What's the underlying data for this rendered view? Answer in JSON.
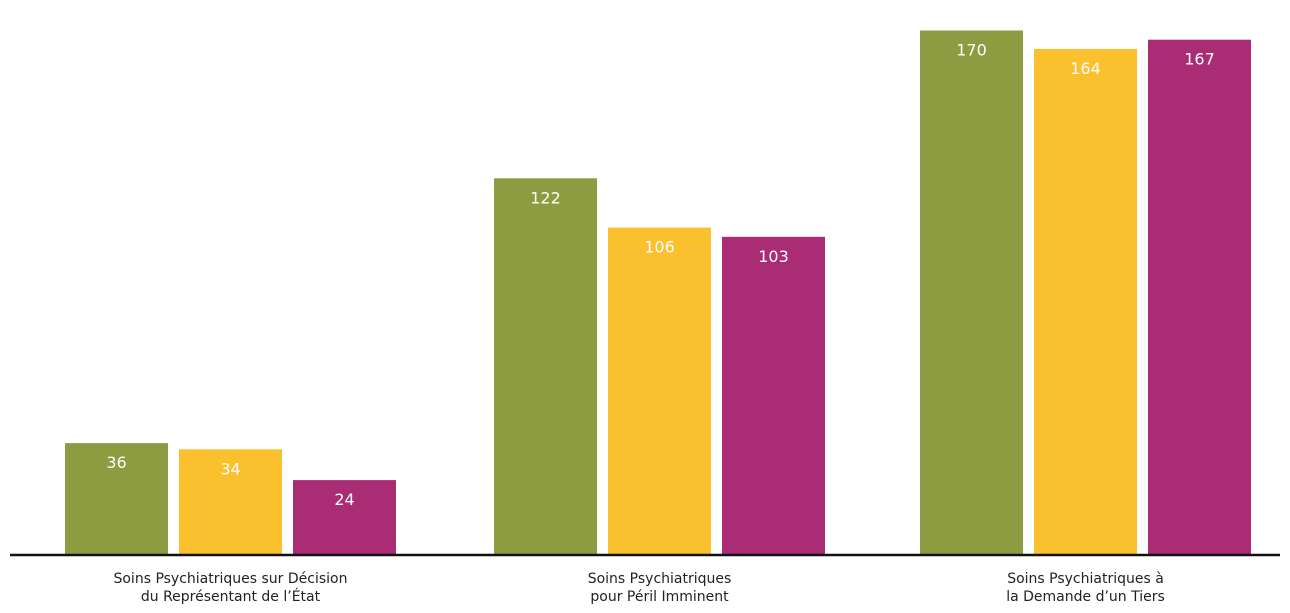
{
  "chart_data": {
    "type": "bar",
    "categories": [
      [
        "Soins Psychiatriques sur Décision",
        "du Représentant de l’État"
      ],
      [
        "Soins Psychiatriques",
        "pour Péril Imminent"
      ],
      [
        "Soins Psychiatriques à",
        "la Demande d’un Tiers"
      ]
    ],
    "series": [
      {
        "values": [
          36,
          122,
          170
        ]
      },
      {
        "values": [
          34,
          106,
          164
        ]
      },
      {
        "values": [
          24,
          103,
          167
        ]
      }
    ],
    "ylim": [
      0,
      176
    ],
    "grid": false,
    "legend": "none",
    "colors": [
      "#8d9c40",
      "#fbc02d",
      "#a92c74"
    ],
    "value_label_color": "#ffffff",
    "axis_color": "#111111"
  }
}
